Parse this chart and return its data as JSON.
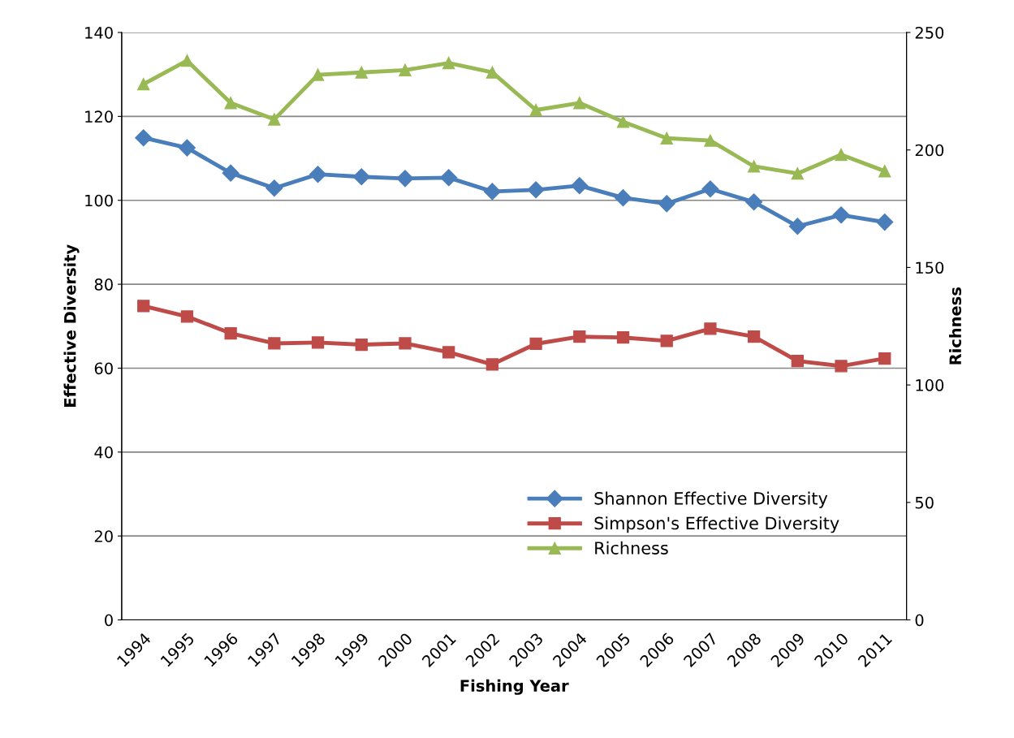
{
  "chart_data": {
    "type": "line",
    "xlabel": "Fishing Year",
    "ylabel": "Effective Diversity",
    "y2label": "Richness",
    "categories": [
      "1994",
      "1995",
      "1996",
      "1997",
      "1998",
      "1999",
      "2000",
      "2001",
      "2002",
      "2003",
      "2004",
      "2005",
      "2006",
      "2007",
      "2008",
      "2009",
      "2010",
      "2011"
    ],
    "series": [
      {
        "name": "Shannon Effective Diversity",
        "color": "#4a7ebb",
        "marker": "diamond",
        "values": [
          114.9,
          112.5,
          106.5,
          102.9,
          106.2,
          105.6,
          105.2,
          105.4,
          102.1,
          102.5,
          103.5,
          100.6,
          99.2,
          102.7,
          99.6,
          93.8,
          96.5,
          94.8
        ]
      },
      {
        "name": "Simpson's Effective Diversity",
        "color": "#be4b48",
        "marker": "square",
        "values": [
          74.8,
          72.3,
          68.3,
          65.9,
          66.1,
          65.6,
          65.9,
          63.8,
          60.9,
          65.8,
          67.5,
          67.3,
          66.5,
          69.4,
          67.5,
          61.7,
          60.5,
          62.3
        ]
      },
      {
        "name": "Richness",
        "color": "#98b954",
        "marker": "triangle",
        "axis": "y2",
        "values": [
          228,
          238,
          220,
          213,
          232,
          233,
          234,
          237,
          233,
          217,
          220,
          212,
          205,
          204,
          193,
          190,
          198,
          191
        ]
      }
    ],
    "ylim": [
      0,
      140
    ],
    "yticks": [
      0,
      20,
      40,
      60,
      80,
      100,
      120,
      140
    ],
    "y2lim": [
      0,
      250
    ],
    "y2ticks": [
      0,
      50,
      100,
      150,
      200,
      250
    ],
    "grid": "y",
    "legend": "bottom",
    "line_style": "solid"
  }
}
